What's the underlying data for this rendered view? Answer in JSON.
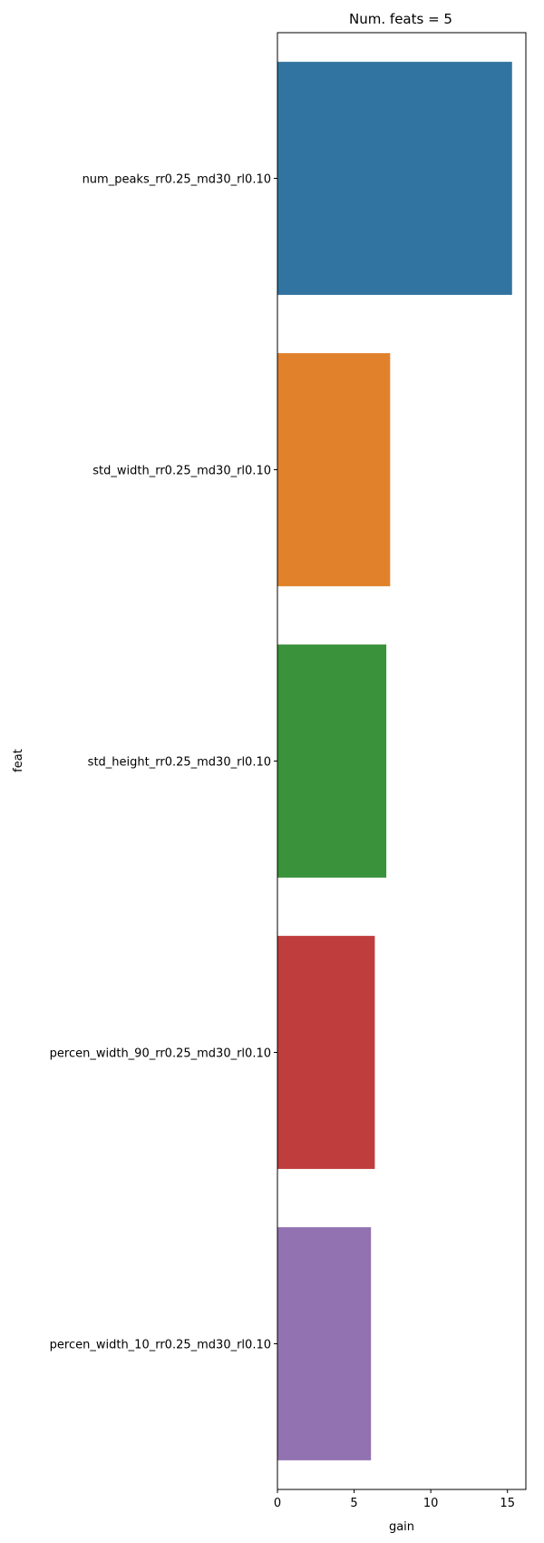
{
  "chart_data": {
    "type": "bar",
    "orientation": "horizontal",
    "title": "Num. feats = 5",
    "xlabel": "gain",
    "ylabel": "feat",
    "categories": [
      "num_peaks_rr0.25_md30_rl0.10",
      "std_width_rr0.25_md30_rl0.10",
      "std_height_rr0.25_md30_rl0.10",
      "percen_width_90_rr0.25_md30_rl0.10",
      "percen_width_10_rr0.25_md30_rl0.10"
    ],
    "values": [
      15.3,
      7.35,
      7.1,
      6.35,
      6.1
    ],
    "colors": [
      "#3274a1",
      "#e1812c",
      "#3a923a",
      "#c03d3e",
      "#9372b2"
    ],
    "xlim": [
      0,
      16.2
    ],
    "xticks": [
      0,
      5,
      10,
      15
    ],
    "xtick_labels": [
      "0",
      "5",
      "10",
      "15"
    ],
    "grid": false,
    "legend": "none"
  }
}
